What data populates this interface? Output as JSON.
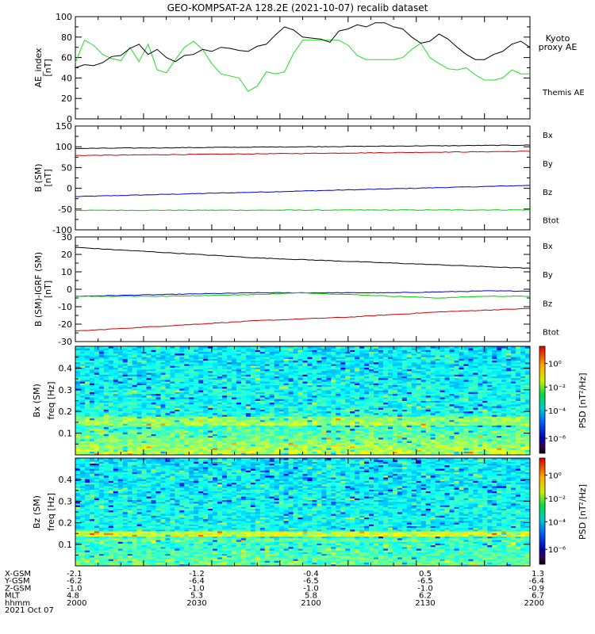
{
  "title": "GEO-KOMPSAT-2A 128.2E (2021-10-07) recalib dataset",
  "colors": {
    "black": "#000000",
    "blue": "#0000cc",
    "green": "#00cc00",
    "red": "#cc0000",
    "kyoto": "#22dd22"
  },
  "chart_data": [
    {
      "type": "line",
      "ylabel": "AE_index",
      "yunit": "[nT]",
      "ylim": [
        0,
        100
      ],
      "yticks": [
        0,
        20,
        40,
        60,
        80,
        100
      ],
      "xlim": [
        2000,
        2200
      ],
      "series": [
        {
          "name": "Kyoto proxy AE",
          "legend_lines": [
            "Kyoto",
            "proxy AE"
          ],
          "color": "#22dd22",
          "x": [
            2000,
            2004,
            2008,
            2012,
            2016,
            2020,
            2024,
            2028,
            2032,
            2036,
            2040,
            2044,
            2048,
            2052,
            2056,
            2060,
            2064,
            2068,
            2072,
            2076,
            2080,
            2084,
            2088,
            2092,
            2096,
            2100,
            2104,
            2108,
            2112,
            2116,
            2120,
            2124,
            2128,
            2132,
            2136,
            2140,
            2144,
            2148,
            2152,
            2156,
            2160,
            2164,
            2168,
            2172,
            2176,
            2180,
            2184,
            2188,
            2192,
            2196,
            2200
          ],
          "values": [
            55,
            77,
            72,
            63,
            59,
            57,
            70,
            56,
            73,
            48,
            45,
            58,
            70,
            76,
            68,
            54,
            44,
            42,
            40,
            27,
            32,
            46,
            44,
            46,
            64,
            77,
            77,
            77,
            77,
            77,
            72,
            62,
            58,
            58,
            58,
            58,
            60,
            68,
            74,
            60,
            54,
            49,
            48,
            50,
            43,
            38,
            38,
            40,
            48,
            44,
            44
          ]
        },
        {
          "name": "Themis AE",
          "legend_lines": [
            "Themis AE"
          ],
          "color": "#000000",
          "x": [
            2000,
            2004,
            2008,
            2012,
            2016,
            2020,
            2024,
            2028,
            2032,
            2036,
            2040,
            2044,
            2048,
            2052,
            2056,
            2060,
            2064,
            2068,
            2072,
            2076,
            2080,
            2084,
            2088,
            2092,
            2096,
            2100,
            2104,
            2108,
            2112,
            2116,
            2120,
            2124,
            2128,
            2132,
            2136,
            2140,
            2144,
            2148,
            2152,
            2156,
            2160,
            2164,
            2168,
            2172,
            2176,
            2180,
            2184,
            2188,
            2192,
            2196,
            2200
          ],
          "values": [
            50,
            53,
            52,
            55,
            61,
            62,
            69,
            73,
            63,
            68,
            60,
            56,
            62,
            63,
            68,
            66,
            70,
            69,
            67,
            66,
            71,
            73,
            82,
            90,
            87,
            80,
            79,
            78,
            75,
            86,
            88,
            92,
            90,
            94,
            94,
            90,
            88,
            80,
            74,
            76,
            83,
            78,
            70,
            63,
            58,
            58,
            63,
            66,
            73,
            76,
            70
          ]
        }
      ]
    },
    {
      "type": "line",
      "ylabel": "B (SM)",
      "yunit": "[nT]",
      "ylim": [
        -100,
        150
      ],
      "yticks": [
        -100,
        -50,
        0,
        50,
        100,
        150
      ],
      "xlim": [
        2000,
        2200
      ],
      "series": [
        {
          "name": "Bx",
          "color": "#0000cc",
          "x": [
            2000,
            2200
          ],
          "values": [
            -20,
            7
          ]
        },
        {
          "name": "By",
          "color": "#00cc00",
          "x": [
            2000,
            2200
          ],
          "values": [
            -53,
            -52
          ]
        },
        {
          "name": "Bz",
          "color": "#cc0000",
          "x": [
            2000,
            2200
          ],
          "values": [
            79,
            89
          ]
        },
        {
          "name": "Btot",
          "color": "#000000",
          "x": [
            2000,
            2200
          ],
          "values": [
            96,
            104
          ]
        }
      ]
    },
    {
      "type": "line",
      "ylabel": "B (SM)-IGRF (SM)",
      "yunit": "[nT]",
      "ylim": [
        -30,
        30
      ],
      "yticks": [
        -30,
        -20,
        -10,
        0,
        10,
        20,
        30
      ],
      "xlim": [
        2000,
        2200
      ],
      "series": [
        {
          "name": "Bx",
          "color": "#0000cc",
          "x": [
            2000,
            2040,
            2080,
            2100,
            2140,
            2180,
            2200
          ],
          "values": [
            -4,
            -3,
            -2,
            -2,
            -2,
            -1,
            -1
          ]
        },
        {
          "name": "By",
          "color": "#00cc00",
          "x": [
            2000,
            2040,
            2080,
            2100,
            2140,
            2160,
            2180,
            2200
          ],
          "values": [
            -4,
            -4,
            -3,
            -2,
            -4,
            -5,
            -4,
            -4
          ]
        },
        {
          "name": "Bz",
          "color": "#cc0000",
          "x": [
            2000,
            2040,
            2080,
            2120,
            2160,
            2200
          ],
          "values": [
            -24,
            -21,
            -18,
            -16,
            -13,
            -11
          ]
        },
        {
          "name": "Btot",
          "color": "#000000",
          "x": [
            2000,
            2040,
            2080,
            2120,
            2160,
            2200
          ],
          "values": [
            24,
            21,
            18,
            16,
            14,
            12
          ]
        }
      ]
    },
    {
      "type": "heatmap",
      "ylabel": "Bx (SM)",
      "yunit": "freq [Hz]",
      "ylim": [
        0,
        0.5
      ],
      "yticks": [
        "0.1",
        "0.2",
        "0.3",
        "0.4"
      ],
      "xlim": [
        2000,
        2200
      ],
      "colorbar": {
        "label": "PSD [nT²/Hz]",
        "ticks": [
          "10⁰",
          "10⁻²",
          "10⁻⁴",
          "10⁻⁶"
        ]
      }
    },
    {
      "type": "heatmap",
      "ylabel": "Bz (SM)",
      "yunit": "freq [Hz]",
      "ylim": [
        0,
        0.5
      ],
      "yticks": [
        "0.1",
        "0.2",
        "0.3",
        "0.4"
      ],
      "xlim": [
        2000,
        2200
      ],
      "colorbar": {
        "label": "PSD [nT²/Hz]",
        "ticks": [
          "10⁰",
          "10⁻²",
          "10⁻⁴",
          "10⁻⁶"
        ]
      }
    }
  ],
  "xaxis": {
    "row_labels": [
      "X-GSM",
      "Y-GSM",
      "Z-GSM",
      "MLT",
      "hhmm"
    ],
    "date": "2021 Oct 07",
    "columns": [
      [
        "-2.1",
        "-6.2",
        "-1.0",
        "4.8",
        "2000"
      ],
      [
        "-1.2",
        "-6.4",
        "-1.0",
        "5.3",
        "2030"
      ],
      [
        "-0.4",
        "-6.5",
        "-1.0",
        "5.8",
        "2100"
      ],
      [
        "0.5",
        "-6.5",
        "-1.0",
        "6.2",
        "2130"
      ],
      [
        "1.3",
        "-6.4",
        "-0.9",
        "6.7",
        "2200"
      ]
    ]
  }
}
